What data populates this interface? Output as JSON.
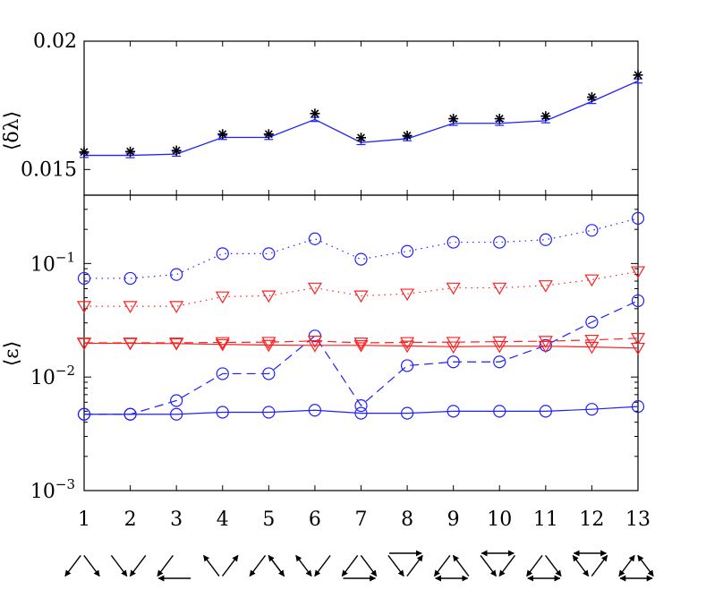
{
  "colors": {
    "blue": "#1f1fff",
    "red": "#ff1f1f",
    "black": "#000000"
  },
  "chart_data": [
    {
      "panel": "top",
      "type": "line",
      "ylabel": "⟨δλ⟩",
      "x": [
        1,
        2,
        3,
        4,
        5,
        6,
        7,
        8,
        9,
        10,
        11,
        12,
        13
      ],
      "ylim": [
        0.014,
        0.02
      ],
      "yticks": [
        0.015,
        0.02
      ],
      "ytick_labels": [
        "0.015",
        "0.02"
      ],
      "grid": false,
      "series": [
        {
          "style": "solid-line-with-errorbars",
          "color": "blue",
          "values": [
            0.01555,
            0.01555,
            0.0156,
            0.01625,
            0.01625,
            0.01695,
            0.01605,
            0.0162,
            0.0168,
            0.0168,
            0.0169,
            0.01765,
            0.01845
          ],
          "errors": [
            8e-05,
            9e-05,
            8e-05,
            8e-05,
            8e-05,
            8e-05,
            8e-05,
            8e-05,
            8e-05,
            8e-05,
            8e-05,
            8e-05,
            8e-05
          ]
        },
        {
          "style": "star-markers",
          "color": "black",
          "values": [
            0.01568,
            0.0157,
            0.01574,
            0.01638,
            0.01638,
            0.01718,
            0.01624,
            0.01632,
            0.01698,
            0.01698,
            0.01708,
            0.01782,
            0.01868
          ]
        }
      ]
    },
    {
      "panel": "bottom",
      "type": "line",
      "ylabel": "⟨ε⟩",
      "yscale": "log",
      "x": [
        1,
        2,
        3,
        4,
        5,
        6,
        7,
        8,
        9,
        10,
        11,
        12,
        13
      ],
      "ylim": [
        0.001,
        0.4
      ],
      "xticks": [
        "1",
        "2",
        "3",
        "4",
        "5",
        "6",
        "7",
        "8",
        "9",
        "10",
        "11",
        "12",
        "13"
      ],
      "yticks": [
        0.001,
        0.01,
        0.1
      ],
      "ytick_labels": [
        {
          "base": "10",
          "exp": "−3"
        },
        {
          "base": "10",
          "exp": "−2"
        },
        {
          "base": "10",
          "exp": "−1"
        }
      ],
      "grid": false,
      "series": [
        {
          "style": "dotted-circle",
          "color": "blue",
          "values": [
            0.074,
            0.074,
            0.08,
            0.122,
            0.122,
            0.165,
            0.109,
            0.128,
            0.154,
            0.154,
            0.162,
            0.196,
            0.25
          ]
        },
        {
          "style": "dotted-triangle",
          "color": "red",
          "values": [
            0.042,
            0.042,
            0.042,
            0.051,
            0.052,
            0.061,
            0.052,
            0.054,
            0.061,
            0.061,
            0.064,
            0.072,
            0.085
          ]
        },
        {
          "style": "dashed-circle",
          "color": "blue",
          "values": [
            0.0047,
            0.0047,
            0.0062,
            0.0107,
            0.0107,
            0.023,
            0.0056,
            0.0126,
            0.0136,
            0.0136,
            0.019,
            0.0305,
            0.047
          ]
        },
        {
          "style": "dashed-triangle",
          "color": "red",
          "values": [
            0.02,
            0.02,
            0.02,
            0.0202,
            0.0203,
            0.0208,
            0.02,
            0.0202,
            0.0203,
            0.0205,
            0.0207,
            0.0212,
            0.022
          ]
        },
        {
          "style": "solid-triangle",
          "color": "red",
          "values": [
            0.0198,
            0.0198,
            0.0197,
            0.0194,
            0.0191,
            0.019,
            0.019,
            0.0188,
            0.0185,
            0.0187,
            0.0187,
            0.0184,
            0.018
          ]
        },
        {
          "style": "solid-circle",
          "color": "blue",
          "values": [
            0.0047,
            0.0047,
            0.0047,
            0.0049,
            0.0049,
            0.0051,
            0.0048,
            0.0048,
            0.005,
            0.005,
            0.005,
            0.0052,
            0.0055
          ]
        }
      ]
    }
  ]
}
